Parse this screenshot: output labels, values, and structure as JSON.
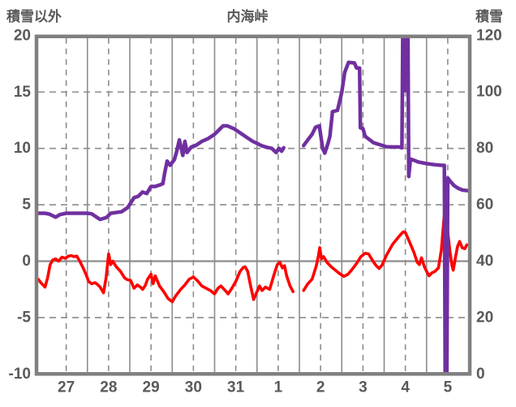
{
  "header": {
    "left_axis_title": "積雪以外",
    "title": "内海峠",
    "right_axis_title": "積雪"
  },
  "colors": {
    "snow_line": "#7030A0",
    "other_line": "#FF0000",
    "grid": "#8C8C8C",
    "border": "#808080",
    "tick_text": "#595959",
    "background": "#FFFFFF"
  },
  "chart_data": {
    "type": "line",
    "title": "内海峠",
    "left_axis_label": "積雪以外",
    "right_axis_label": "積雪",
    "x_tick_labels": [
      "27",
      "28",
      "29",
      "30",
      "31",
      "1",
      "2",
      "3",
      "4",
      "5"
    ],
    "left_axis_ticks": [
      20,
      15,
      10,
      5,
      0,
      -5,
      -10
    ],
    "right_axis_ticks": [
      120,
      100,
      80,
      60,
      40,
      20,
      0
    ],
    "left_ylim": [
      -10,
      20
    ],
    "right_ylim": [
      0,
      120
    ],
    "x_range_days": [
      -0.163,
      10.06
    ],
    "grid": {
      "horizontal": "dashed",
      "vertical_midnight": "solid",
      "vertical_noon": "dashed",
      "zero_line": "solid"
    },
    "legend_position": "none",
    "series": [
      {
        "name": "積雪",
        "axis": "right",
        "color": "#7030A0",
        "width": 4.5,
        "segments": [
          [
            [
              -0.16,
              57
            ],
            [
              0.0,
              57
            ],
            [
              0.1,
              56.7
            ],
            [
              0.25,
              55.6
            ],
            [
              0.35,
              56.5
            ],
            [
              0.5,
              57
            ],
            [
              0.8,
              57
            ],
            [
              1.0,
              57
            ],
            [
              1.1,
              56.8
            ],
            [
              1.3,
              54.8
            ],
            [
              1.45,
              55.5
            ],
            [
              1.55,
              57
            ],
            [
              1.8,
              57.5
            ],
            [
              1.95,
              59
            ],
            [
              2.1,
              62.5
            ],
            [
              2.2,
              63
            ],
            [
              2.3,
              64.5
            ],
            [
              2.4,
              64
            ],
            [
              2.5,
              66.5
            ],
            [
              2.6,
              66.5
            ],
            [
              2.7,
              67
            ],
            [
              2.78,
              67.5
            ],
            [
              2.82,
              71
            ],
            [
              2.88,
              75.5
            ],
            [
              2.95,
              74
            ],
            [
              3.05,
              76
            ],
            [
              3.1,
              78.6
            ],
            [
              3.17,
              83
            ],
            [
              3.25,
              77.5
            ],
            [
              3.3,
              82.5
            ],
            [
              3.35,
              78.5
            ],
            [
              3.45,
              80.5
            ],
            [
              3.55,
              81
            ],
            [
              3.7,
              82.5
            ],
            [
              3.85,
              83.5
            ],
            [
              4.0,
              85
            ],
            [
              4.1,
              86.5
            ],
            [
              4.2,
              88
            ],
            [
              4.3,
              88
            ],
            [
              4.45,
              87
            ],
            [
              4.6,
              85.5
            ],
            [
              4.75,
              84
            ],
            [
              4.9,
              82.5
            ],
            [
              5.0,
              81.8
            ],
            [
              5.1,
              81
            ],
            [
              5.25,
              80.3
            ],
            [
              5.35,
              80
            ],
            [
              5.45,
              78.5
            ],
            [
              5.52,
              80
            ],
            [
              5.58,
              79
            ],
            [
              5.63,
              80.2
            ]
          ],
          [
            [
              6.1,
              81
            ],
            [
              6.2,
              83
            ],
            [
              6.3,
              85
            ],
            [
              6.38,
              87.5
            ],
            [
              6.47,
              88
            ],
            [
              6.55,
              80
            ],
            [
              6.6,
              78.3
            ],
            [
              6.68,
              82
            ],
            [
              6.72,
              84.3
            ],
            [
              6.78,
              93
            ],
            [
              6.9,
              93.5
            ],
            [
              7.0,
              100
            ],
            [
              7.07,
              107
            ],
            [
              7.16,
              110.5
            ],
            [
              7.3,
              110.3
            ],
            [
              7.35,
              108.5
            ],
            [
              7.42,
              108.5
            ],
            [
              7.44,
              87.3
            ],
            [
              7.5,
              87
            ],
            [
              7.55,
              84.3
            ],
            [
              7.62,
              83.5
            ],
            [
              7.75,
              82
            ],
            [
              7.9,
              81.3
            ],
            [
              8.05,
              80.6
            ],
            [
              8.2,
              80.5
            ],
            [
              8.35,
              80.5
            ],
            [
              8.42,
              80.2
            ],
            [
              8.44,
              123
            ],
            [
              8.47,
              123
            ],
            [
              8.5,
              100.5
            ],
            [
              8.52,
              123
            ],
            [
              8.56,
              123
            ],
            [
              8.58,
              70
            ],
            [
              8.62,
              76.2
            ],
            [
              8.7,
              75.8
            ],
            [
              8.8,
              75.2
            ],
            [
              9.0,
              74.6
            ],
            [
              9.2,
              74.2
            ],
            [
              9.35,
              74
            ],
            [
              9.42,
              74
            ],
            [
              9.44,
              0
            ],
            [
              9.48,
              0
            ],
            [
              9.5,
              69.5
            ],
            [
              9.55,
              68.5
            ],
            [
              9.65,
              66.8
            ],
            [
              9.75,
              65.8
            ],
            [
              9.85,
              65.2
            ],
            [
              9.97,
              65
            ]
          ]
        ]
      },
      {
        "name": "積雪以外",
        "axis": "left",
        "color": "#FF0000",
        "width": 3.6,
        "segments": [
          [
            [
              -0.16,
              -1.6
            ],
            [
              -0.1,
              -1.9
            ],
            [
              -0.05,
              -2.1
            ],
            [
              0.0,
              -2.3
            ],
            [
              0.06,
              -1.5
            ],
            [
              0.12,
              -0.3
            ],
            [
              0.18,
              0.1
            ],
            [
              0.25,
              0.2
            ],
            [
              0.32,
              0.0
            ],
            [
              0.4,
              0.35
            ],
            [
              0.48,
              0.25
            ],
            [
              0.55,
              0.45
            ],
            [
              0.62,
              0.5
            ],
            [
              0.68,
              0.4
            ],
            [
              0.75,
              0.45
            ],
            [
              0.82,
              0.0
            ],
            [
              0.9,
              -0.6
            ],
            [
              0.97,
              -1.2
            ],
            [
              1.03,
              -1.8
            ],
            [
              1.1,
              -2.0
            ],
            [
              1.18,
              -1.9
            ],
            [
              1.25,
              -2.1
            ],
            [
              1.3,
              -2.3
            ],
            [
              1.38,
              -2.8
            ],
            [
              1.44,
              -1.5
            ],
            [
              1.5,
              0.65
            ],
            [
              1.55,
              -0.3
            ],
            [
              1.6,
              0.0
            ],
            [
              1.68,
              -0.5
            ],
            [
              1.78,
              -0.9
            ],
            [
              1.88,
              -1.5
            ],
            [
              1.95,
              -1.65
            ],
            [
              2.02,
              -1.7
            ],
            [
              2.1,
              -2.4
            ],
            [
              2.18,
              -2.1
            ],
            [
              2.25,
              -2.3
            ],
            [
              2.3,
              -2.5
            ],
            [
              2.36,
              -2.2
            ],
            [
              2.42,
              -1.6
            ],
            [
              2.5,
              -1.15
            ],
            [
              2.55,
              -2.0
            ],
            [
              2.6,
              -1.3
            ],
            [
              2.7,
              -2.2
            ],
            [
              2.8,
              -2.7
            ],
            [
              2.9,
              -3.3
            ],
            [
              3.0,
              -3.6
            ],
            [
              3.08,
              -3.1
            ],
            [
              3.2,
              -2.5
            ],
            [
              3.3,
              -2.1
            ],
            [
              3.4,
              -1.6
            ],
            [
              3.5,
              -1.4
            ],
            [
              3.6,
              -1.75
            ],
            [
              3.7,
              -2.2
            ],
            [
              3.8,
              -2.4
            ],
            [
              3.9,
              -2.6
            ],
            [
              4.0,
              -2.9
            ],
            [
              4.08,
              -2.4
            ],
            [
              4.15,
              -2.2
            ],
            [
              4.25,
              -2.6
            ],
            [
              4.32,
              -2.9
            ],
            [
              4.4,
              -2.45
            ],
            [
              4.5,
              -1.8
            ],
            [
              4.6,
              -0.9
            ],
            [
              4.68,
              -0.55
            ],
            [
              4.72,
              -0.5
            ],
            [
              4.78,
              -0.9
            ],
            [
              4.85,
              -2.2
            ],
            [
              4.92,
              -3.4
            ],
            [
              5.0,
              -2.7
            ],
            [
              5.06,
              -2.2
            ],
            [
              5.12,
              -2.6
            ],
            [
              5.2,
              -2.3
            ],
            [
              5.3,
              -2.5
            ],
            [
              5.4,
              -1.2
            ],
            [
              5.48,
              -0.3
            ],
            [
              5.54,
              -0.1
            ],
            [
              5.6,
              -0.6
            ],
            [
              5.65,
              -0.4
            ],
            [
              5.7,
              -1.3
            ],
            [
              5.78,
              -2.2
            ],
            [
              5.85,
              -2.7
            ]
          ],
          [
            [
              6.1,
              -2.6
            ],
            [
              6.2,
              -2.0
            ],
            [
              6.3,
              -1.6
            ],
            [
              6.4,
              -0.4
            ],
            [
              6.45,
              0.5
            ],
            [
              6.48,
              1.2
            ],
            [
              6.52,
              0.2
            ],
            [
              6.57,
              0.4
            ],
            [
              6.65,
              -0.1
            ],
            [
              6.75,
              -0.5
            ],
            [
              6.85,
              -0.8
            ],
            [
              6.95,
              -1.1
            ],
            [
              7.05,
              -1.35
            ],
            [
              7.15,
              -1.15
            ],
            [
              7.25,
              -0.7
            ],
            [
              7.35,
              -0.2
            ],
            [
              7.45,
              0.4
            ],
            [
              7.55,
              0.7
            ],
            [
              7.63,
              0.65
            ],
            [
              7.72,
              0.1
            ],
            [
              7.8,
              -0.35
            ],
            [
              7.88,
              -0.65
            ],
            [
              7.95,
              -0.35
            ],
            [
              8.05,
              0.5
            ],
            [
              8.2,
              1.5
            ],
            [
              8.35,
              2.2
            ],
            [
              8.45,
              2.6
            ],
            [
              8.5,
              2.55
            ],
            [
              8.6,
              1.7
            ],
            [
              8.7,
              0.8
            ],
            [
              8.78,
              -0.1
            ],
            [
              8.83,
              -0.3
            ],
            [
              8.88,
              0.3
            ],
            [
              8.95,
              -0.5
            ],
            [
              9.0,
              -0.9
            ],
            [
              9.06,
              -1.3
            ],
            [
              9.12,
              -1.05
            ],
            [
              9.2,
              -0.9
            ],
            [
              9.28,
              -0.6
            ],
            [
              9.35,
              1.0
            ],
            [
              9.42,
              4.2
            ],
            [
              9.45,
              4.9
            ],
            [
              9.5,
              2.6
            ],
            [
              9.55,
              0.9
            ],
            [
              9.6,
              -0.4
            ],
            [
              9.63,
              -0.8
            ],
            [
              9.68,
              0.3
            ],
            [
              9.73,
              1.3
            ],
            [
              9.78,
              1.75
            ],
            [
              9.84,
              1.2
            ],
            [
              9.9,
              1.1
            ],
            [
              9.95,
              1.45
            ]
          ]
        ]
      }
    ]
  }
}
